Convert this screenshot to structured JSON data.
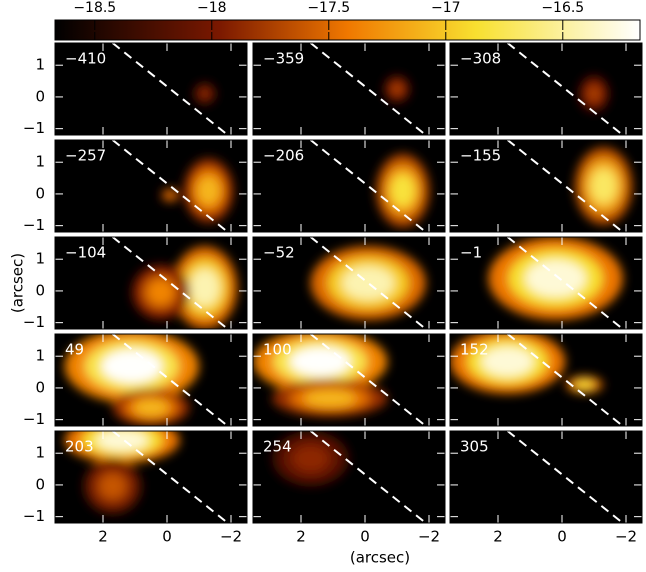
{
  "chart_data": {
    "type": "channel-maps",
    "colorbar": {
      "clim": [
        -18.67,
        -16.17
      ],
      "ticks": [
        {
          "value": -18.5,
          "label": "−18.5"
        },
        {
          "value": -18,
          "label": "−18"
        },
        {
          "value": -17.5,
          "label": "−17.5"
        },
        {
          "value": -17,
          "label": "−17"
        },
        {
          "value": -16.5,
          "label": "−16.5"
        }
      ]
    },
    "panels": [
      "−410",
      "−359",
      "−308",
      "−257",
      "−206",
      "−155",
      "−104",
      "−52",
      "−1",
      "49",
      "100",
      "152",
      "203",
      "254",
      "305"
    ],
    "xlim": [
      3.5,
      -2.5
    ],
    "ylim": [
      -1.2,
      1.7
    ],
    "xticks": [
      2,
      0,
      {
        "value": -2,
        "label": "−2"
      }
    ],
    "yticks": [
      1,
      0,
      {
        "value": -1,
        "label": "−1"
      }
    ],
    "xlabel": "(arcsec)",
    "ylabel": "(arcsec)"
  }
}
